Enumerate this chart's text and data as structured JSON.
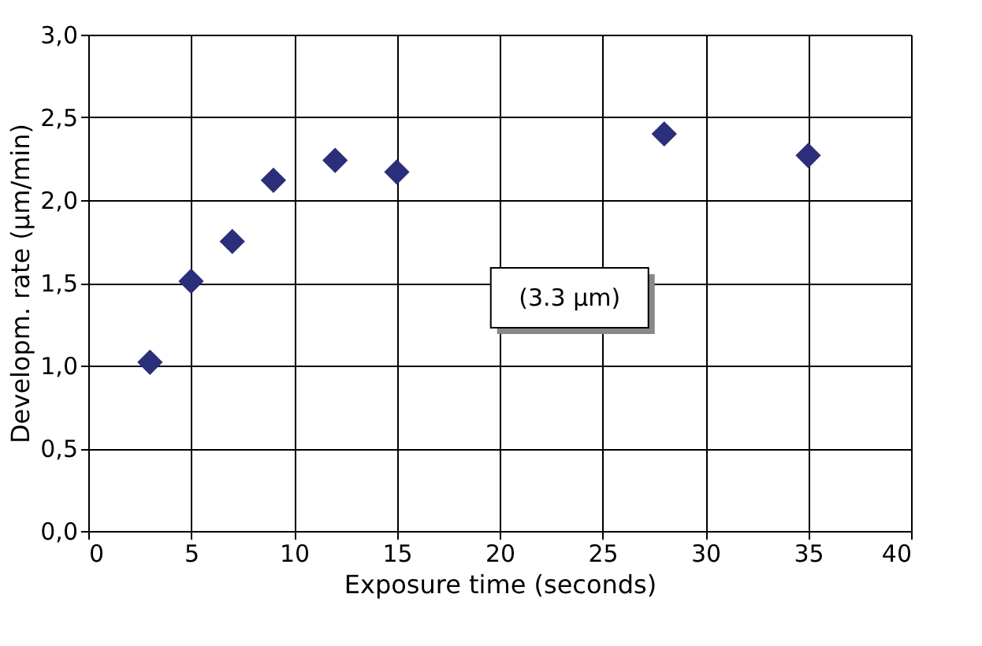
{
  "chart_data": {
    "type": "scatter",
    "xlabel": "Exposure time (seconds)",
    "ylabel": "Developm. rate (µm/min)",
    "x": [
      3,
      5,
      7,
      9,
      12,
      15,
      28,
      35
    ],
    "values": [
      1.02,
      1.51,
      1.75,
      2.12,
      2.24,
      2.17,
      2.4,
      2.27
    ],
    "color": "#2b2e78",
    "marker": "diamond",
    "grid": true,
    "xlim": [
      0,
      40
    ],
    "xticks": [
      0,
      5,
      10,
      15,
      20,
      25,
      30,
      35,
      40
    ],
    "ylim": [
      0,
      3
    ],
    "yticks": [
      {
        "value": 0,
        "label": "0,0"
      },
      {
        "value": 0.5,
        "label": "0,5"
      },
      {
        "value": 1,
        "label": "1,0"
      },
      {
        "value": 1.5,
        "label": "1,5"
      },
      {
        "value": 2,
        "label": "2,0"
      },
      {
        "value": 2.5,
        "label": "2,5"
      },
      {
        "value": 3,
        "label": "3,0"
      }
    ],
    "annotations": [
      "(3.3 µm)"
    ]
  }
}
